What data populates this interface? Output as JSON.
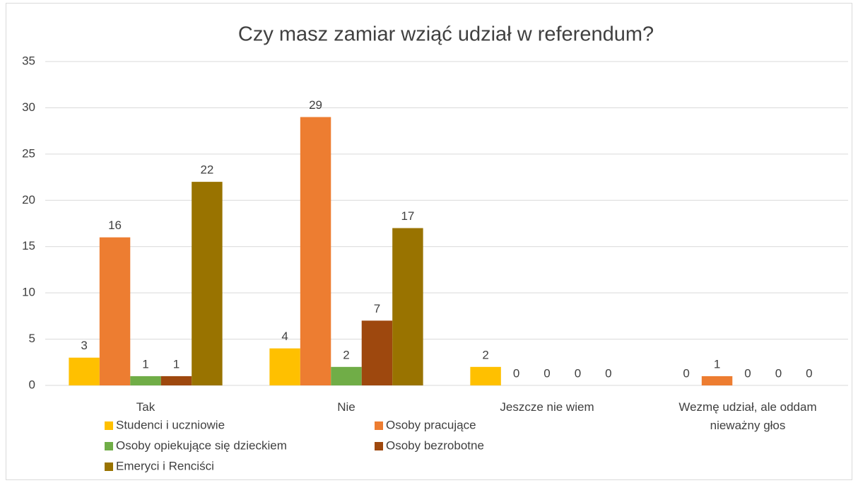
{
  "chart_data": {
    "type": "bar",
    "title": "Czy masz zamiar wziąć udział w referendum?",
    "categories": [
      "Tak",
      "Nie",
      "Jeszcze nie wiem",
      "Wezmę udział, ale oddam nieważny głos"
    ],
    "series": [
      {
        "name": "Studenci i uczniowie",
        "color": "#FFC000",
        "values": [
          3,
          4,
          2,
          0
        ]
      },
      {
        "name": "Osoby pracujące",
        "color": "#ED7D31",
        "values": [
          16,
          29,
          0,
          1
        ]
      },
      {
        "name": "Osoby opiekujące się dzieckiem",
        "color": "#70AD47",
        "values": [
          1,
          2,
          0,
          0
        ]
      },
      {
        "name": "Osoby bezrobotne",
        "color": "#9E480E",
        "values": [
          1,
          7,
          0,
          0
        ]
      },
      {
        "name": "Emeryci i Renciści",
        "color": "#997300",
        "values": [
          22,
          17,
          0,
          0
        ]
      }
    ],
    "ylim": [
      0,
      35
    ],
    "yticks": [
      0,
      5,
      10,
      15,
      20,
      25,
      30,
      35
    ],
    "grid": true
  }
}
